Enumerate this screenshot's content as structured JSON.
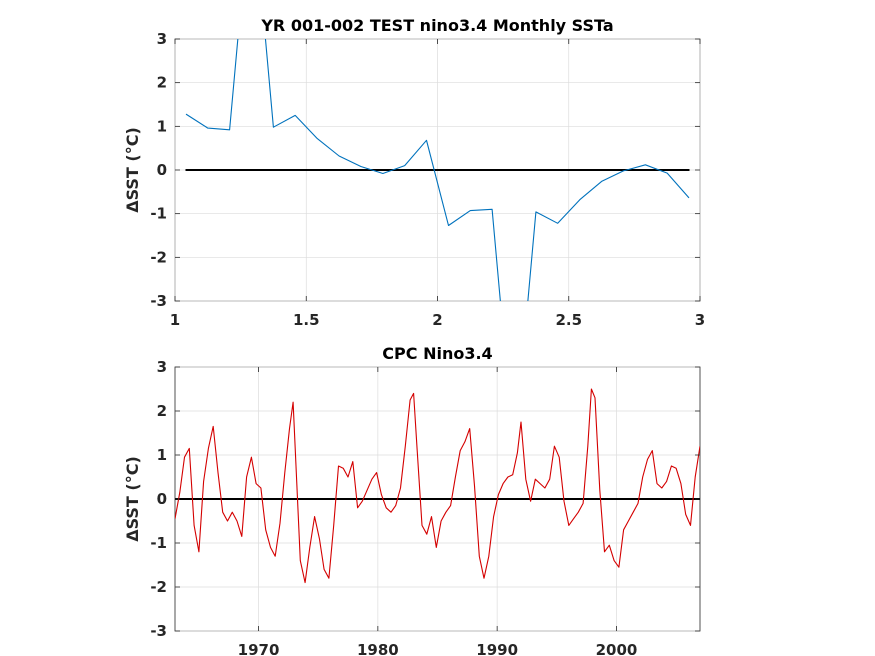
{
  "chart_data": [
    {
      "type": "line",
      "title": "YR 001-002 TEST nino3.4 Monthly SSTa",
      "ylabel": "ΔSST (°C)",
      "xlabel": "",
      "xlim": [
        1,
        3
      ],
      "ylim": [
        -3,
        3
      ],
      "xticks": [
        1,
        1.5,
        2,
        2.5,
        3
      ],
      "xtick_labels": [
        "1",
        "1.5",
        "2",
        "2.5",
        "3"
      ],
      "yticks": [
        -3,
        -2,
        -1,
        0,
        1,
        2,
        3
      ],
      "ytick_labels": [
        "-3",
        "-2",
        "-1",
        "0",
        "1",
        "2",
        "3"
      ],
      "grid": true,
      "color": "#0072bd",
      "zero_line": {
        "value": 0,
        "x_range": [
          1.04,
          2.96
        ],
        "color": "#000000"
      },
      "series": [
        {
          "x": [
            1.042,
            1.125,
            1.208,
            1.292,
            1.375,
            1.458,
            1.542,
            1.625,
            1.708,
            1.792,
            1.875,
            1.958,
            2.042,
            2.125,
            2.208,
            2.292,
            2.375,
            2.458,
            2.542,
            2.625,
            2.708,
            2.792,
            2.875,
            2.958
          ],
          "y": [
            1.28,
            0.96,
            0.92,
            6.5,
            0.98,
            1.25,
            0.72,
            0.32,
            0.08,
            -0.08,
            0.1,
            0.68,
            -1.27,
            -0.93,
            -0.9,
            -6.5,
            -0.96,
            -1.22,
            -0.68,
            -0.26,
            -0.02,
            0.12,
            -0.07,
            -0.64
          ]
        }
      ]
    },
    {
      "type": "line",
      "title": "CPC Nino3.4",
      "ylabel": "ΔSST (°C)",
      "xlabel": "",
      "xlim": [
        1963,
        2007
      ],
      "ylim": [
        -3,
        3
      ],
      "xticks": [
        1970,
        1980,
        1990,
        2000
      ],
      "xtick_labels": [
        "1970",
        "1980",
        "1990",
        "2000"
      ],
      "yticks": [
        -3,
        -2,
        -1,
        0,
        1,
        2,
        3
      ],
      "ytick_labels": [
        "-3",
        "-2",
        "-1",
        "0",
        "1",
        "2",
        "3"
      ],
      "grid": true,
      "color": "#d40000",
      "zero_line": {
        "value": 0,
        "x_range": [
          1963,
          2007
        ],
        "color": "#000000"
      },
      "series": [
        {
          "x": [
            1963.0,
            1963.4,
            1963.8,
            1964.2,
            1964.6,
            1965.0,
            1965.4,
            1965.8,
            1966.2,
            1966.6,
            1967.0,
            1967.4,
            1967.8,
            1968.2,
            1968.6,
            1969.0,
            1969.4,
            1969.8,
            1970.2,
            1970.6,
            1971.0,
            1971.4,
            1971.8,
            1972.2,
            1972.6,
            1972.9,
            1973.2,
            1973.5,
            1973.9,
            1974.3,
            1974.7,
            1975.1,
            1975.5,
            1975.9,
            1976.3,
            1976.7,
            1977.1,
            1977.5,
            1977.9,
            1978.3,
            1978.7,
            1979.1,
            1979.5,
            1979.9,
            1980.3,
            1980.7,
            1981.1,
            1981.5,
            1981.9,
            1982.3,
            1982.7,
            1983.0,
            1983.3,
            1983.7,
            1984.1,
            1984.5,
            1984.9,
            1985.3,
            1985.7,
            1986.1,
            1986.5,
            1986.9,
            1987.3,
            1987.7,
            1988.1,
            1988.5,
            1988.9,
            1989.3,
            1989.7,
            1990.1,
            1990.5,
            1990.9,
            1991.3,
            1991.7,
            1992.0,
            1992.4,
            1992.8,
            1993.2,
            1993.6,
            1994.0,
            1994.4,
            1994.8,
            1995.2,
            1995.6,
            1996.0,
            1996.4,
            1996.8,
            1997.2,
            1997.6,
            1997.9,
            1998.2,
            1998.6,
            1999.0,
            1999.4,
            1999.8,
            2000.2,
            2000.6,
            2001.0,
            2001.4,
            2001.8,
            2002.2,
            2002.6,
            2003.0,
            2003.4,
            2003.8,
            2004.2,
            2004.6,
            2005.0,
            2005.4,
            2005.8,
            2006.2,
            2006.6,
            2007.0
          ],
          "y": [
            -0.45,
            0.15,
            0.95,
            1.15,
            -0.6,
            -1.2,
            0.4,
            1.15,
            1.65,
            0.6,
            -0.3,
            -0.5,
            -0.3,
            -0.5,
            -0.85,
            0.5,
            0.95,
            0.35,
            0.25,
            -0.7,
            -1.1,
            -1.3,
            -0.55,
            0.6,
            1.6,
            2.2,
            0.4,
            -1.4,
            -1.9,
            -1.1,
            -0.4,
            -0.9,
            -1.6,
            -1.8,
            -0.6,
            0.75,
            0.7,
            0.5,
            0.85,
            -0.2,
            -0.05,
            0.2,
            0.45,
            0.6,
            0.1,
            -0.2,
            -0.3,
            -0.15,
            0.25,
            1.2,
            2.25,
            2.4,
            1.1,
            -0.6,
            -0.8,
            -0.4,
            -1.1,
            -0.5,
            -0.3,
            -0.15,
            0.5,
            1.1,
            1.3,
            1.6,
            0.3,
            -1.3,
            -1.8,
            -1.3,
            -0.4,
            0.1,
            0.35,
            0.5,
            0.55,
            1.05,
            1.75,
            0.45,
            -0.05,
            0.45,
            0.35,
            0.25,
            0.45,
            1.2,
            0.95,
            -0.05,
            -0.6,
            -0.45,
            -0.3,
            -0.1,
            1.2,
            2.5,
            2.3,
            0.2,
            -1.2,
            -1.05,
            -1.4,
            -1.55,
            -0.7,
            -0.5,
            -0.3,
            -0.1,
            0.5,
            0.9,
            1.1,
            0.35,
            0.25,
            0.4,
            0.75,
            0.7,
            0.35,
            -0.35,
            -0.6,
            0.5,
            1.2
          ]
        }
      ]
    }
  ]
}
